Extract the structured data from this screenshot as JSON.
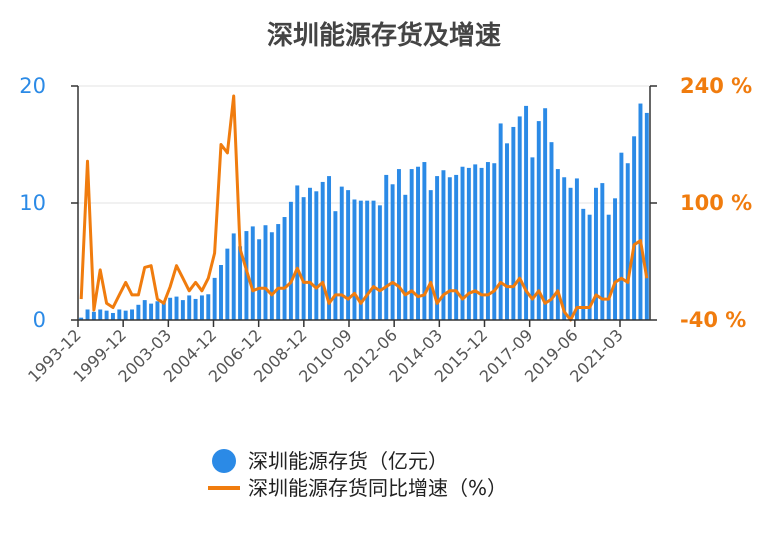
{
  "chart_data": {
    "type": "bar+line",
    "title": "深圳能源存货及增速",
    "x_tick_labels": [
      "1993-12",
      "1999-12",
      "2003-03",
      "2004-12",
      "2006-12",
      "2008-12",
      "2010-09",
      "2012-06",
      "2014-03",
      "2015-12",
      "2017-09",
      "2019-06",
      "2021-03"
    ],
    "y_left": {
      "ticks": [
        "0",
        "10",
        "20"
      ],
      "ylim": [
        0,
        20
      ]
    },
    "y_right": {
      "ticks": [
        "-40 %",
        "100 %",
        "240 %"
      ],
      "ylim": [
        -40,
        240
      ]
    },
    "grid": true,
    "legend_position": "bottom",
    "series": [
      {
        "name": "深圳能源存货（亿元）",
        "type": "bar",
        "axis": "left",
        "color": "#2b8ae6",
        "values": [
          0.2,
          0.9,
          0.7,
          0.9,
          0.8,
          0.6,
          0.9,
          0.8,
          0.9,
          1.3,
          1.7,
          1.4,
          1.6,
          1.6,
          1.9,
          2.0,
          1.7,
          2.1,
          1.8,
          2.1,
          2.2,
          3.6,
          4.7,
          6.1,
          7.4,
          6.3,
          7.6,
          8.0,
          6.9,
          8.1,
          7.5,
          8.2,
          8.8,
          10.1,
          11.5,
          10.5,
          11.3,
          11.0,
          11.8,
          12.3,
          9.3,
          11.4,
          11.1,
          10.3,
          10.2,
          10.2,
          10.2,
          9.8,
          12.4,
          11.6,
          12.9,
          10.7,
          12.9,
          13.1,
          13.5,
          11.1,
          12.3,
          12.8,
          12.2,
          12.4,
          13.1,
          13.0,
          13.3,
          13.0,
          13.5,
          13.4,
          16.8,
          15.1,
          16.5,
          17.4,
          18.3,
          13.9,
          17.0,
          18.1,
          15.2,
          12.9,
          12.2,
          11.3,
          12.1,
          9.5,
          9.0,
          11.3,
          11.7,
          9.0,
          10.4,
          14.3,
          13.4,
          15.7,
          18.5,
          17.7
        ]
      },
      {
        "name": "深圳能源存货同比增速（%）",
        "type": "line",
        "axis": "right",
        "color": "#f07c0e",
        "values": [
          -15,
          150,
          -28,
          20,
          -20,
          -25,
          -10,
          5,
          -10,
          -10,
          23,
          25,
          -15,
          -20,
          0,
          25,
          10,
          -5,
          5,
          -5,
          10,
          40,
          170,
          160,
          228,
          45,
          20,
          -5,
          -2,
          -2,
          -10,
          -2,
          -2,
          5,
          22,
          5,
          5,
          -2,
          5,
          -20,
          -10,
          -10,
          -15,
          -8,
          -20,
          -10,
          0,
          -5,
          0,
          5,
          0,
          -10,
          -5,
          -12,
          -10,
          5,
          -20,
          -10,
          -5,
          -5,
          -15,
          -8,
          -5,
          -10,
          -10,
          -5,
          5,
          0,
          0,
          10,
          -5,
          -15,
          -5,
          -20,
          -15,
          -5,
          -30,
          -40,
          -25,
          -25,
          -25,
          -10,
          -15,
          -15,
          5,
          10,
          5,
          50,
          55,
          10
        ]
      }
    ]
  }
}
